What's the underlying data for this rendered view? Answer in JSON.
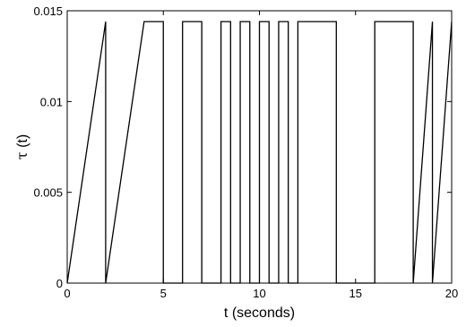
{
  "chart_data": {
    "type": "line",
    "xlabel": "t (seconds)",
    "ylabel_symbol": "τ",
    "ylabel_arg": " (t)",
    "xlim": [
      0,
      20
    ],
    "ylim": [
      0,
      0.015
    ],
    "grid": false,
    "x_ticks": [
      {
        "value": 0,
        "label": "0"
      },
      {
        "value": 5,
        "label": "5"
      },
      {
        "value": 10,
        "label": "10"
      },
      {
        "value": 15,
        "label": "15"
      },
      {
        "value": 20,
        "label": "20"
      }
    ],
    "y_ticks": [
      {
        "value": 0,
        "label": "0"
      },
      {
        "value": 0.005,
        "label": "0.005"
      },
      {
        "value": 0.01,
        "label": "0.01"
      },
      {
        "value": 0.015,
        "label": "0.015"
      }
    ],
    "series": [
      {
        "color": "#000000",
        "x": [
          0,
          2,
          2,
          2,
          4,
          5,
          5,
          6,
          6,
          7,
          7,
          8,
          8,
          8.5,
          8.5,
          9,
          9,
          9.5,
          9.5,
          10,
          10,
          10.5,
          10.5,
          11,
          11,
          11.5,
          11.5,
          12,
          12,
          14,
          14,
          16,
          16,
          18,
          18,
          19,
          19,
          19,
          20
        ],
        "y": [
          0,
          0.0144,
          0.0144,
          0,
          0.0144,
          0.0144,
          0,
          0,
          0.0144,
          0.0144,
          0,
          0,
          0.0144,
          0.0144,
          0,
          0,
          0.0144,
          0.0144,
          0,
          0,
          0.0144,
          0.0144,
          0,
          0,
          0.0144,
          0.0144,
          0,
          0,
          0.0144,
          0.0144,
          0,
          0,
          0.0144,
          0.0144,
          0,
          0.0144,
          0.0144,
          0,
          0.0144
        ]
      }
    ]
  }
}
